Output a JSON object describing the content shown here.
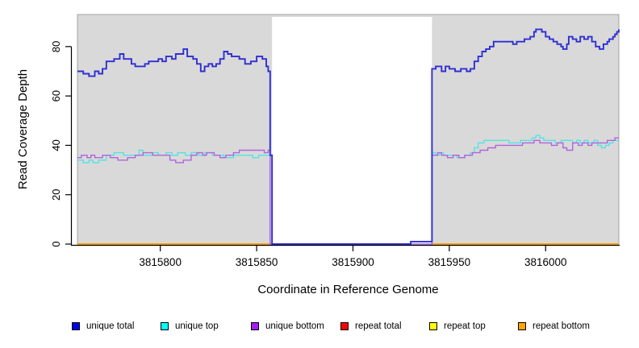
{
  "axes": {
    "x_label": "Coordinate in Reference Genome",
    "y_label": "Read Coverage Depth",
    "x_ticks": [
      {
        "value": 3815800,
        "label": "3815800"
      },
      {
        "value": 3815850,
        "label": "3815850"
      },
      {
        "value": 3815900,
        "label": "3815900"
      },
      {
        "value": 3815950,
        "label": "3815950"
      },
      {
        "value": 3816000,
        "label": "3816000"
      }
    ],
    "y_ticks": [
      {
        "value": 0,
        "label": "0"
      },
      {
        "value": 20,
        "label": "20"
      },
      {
        "value": 40,
        "label": "40"
      },
      {
        "value": 60,
        "label": "60"
      },
      {
        "value": 80,
        "label": "80"
      }
    ],
    "x_domain": [
      3815757,
      3816038
    ],
    "y_domain": [
      0,
      93
    ],
    "axis_color": "#000000"
  },
  "panel": {
    "bg_color": "#d9d9d9",
    "edge_color": "#a3a3a3",
    "gap_region": {
      "x_start": 3815858,
      "x_end": 3815941,
      "color": "#ffffff"
    }
  },
  "legend": {
    "items": [
      {
        "label": "unique total",
        "color": "#0000f0"
      },
      {
        "label": "unique top",
        "color": "#00ffff"
      },
      {
        "label": "unique bottom",
        "color": "#a020f0"
      },
      {
        "label": "repeat total",
        "color": "#ff0000"
      },
      {
        "label": "repeat top",
        "color": "#ffff00"
      },
      {
        "label": "repeat bottom",
        "color": "#ffa500"
      }
    ]
  },
  "chart_data": {
    "type": "line",
    "step": true,
    "title": "",
    "xlabel": "Coordinate in Reference Genome",
    "ylabel": "Read Coverage Depth",
    "xlim": [
      3815757,
      3816038
    ],
    "ylim": [
      0,
      93
    ],
    "grid": false,
    "legend_position": "bottom",
    "masked_region": {
      "x_start": 3815858,
      "x_end": 3815941
    },
    "series": [
      {
        "name": "repeat total",
        "color": "#ff0000",
        "width": 1.8,
        "segments": [
          [
            [
              3815757,
              0
            ],
            [
              3815858,
              0
            ]
          ],
          [
            [
              3815941,
              0
            ],
            [
              3816038,
              0
            ]
          ]
        ]
      },
      {
        "name": "repeat top",
        "color": "#ffff00",
        "width": 1.8,
        "segments": [
          [
            [
              3815757,
              0
            ],
            [
              3815858,
              0
            ]
          ],
          [
            [
              3815941,
              0
            ],
            [
              3816038,
              0
            ]
          ]
        ]
      },
      {
        "name": "repeat bottom",
        "color": "#ff9d09",
        "width": 1.8,
        "segments": [
          [
            [
              3815757,
              0
            ],
            [
              3815858,
              0
            ]
          ],
          [
            [
              3815941,
              0
            ],
            [
              3816038,
              0
            ]
          ]
        ]
      },
      {
        "name": "unique top",
        "color": "#53e3e3",
        "width": 1.4,
        "segments": [
          [
            [
              3815757,
              34
            ],
            [
              3815760,
              33
            ],
            [
              3815763,
              34
            ],
            [
              3815765,
              33
            ],
            [
              3815768,
              34
            ],
            [
              3815772,
              36
            ],
            [
              3815776,
              37
            ],
            [
              3815781,
              36
            ],
            [
              3815789,
              38
            ],
            [
              3815791,
              36
            ],
            [
              3815796,
              37
            ],
            [
              3815799,
              36
            ],
            [
              3815803,
              37
            ],
            [
              3815806,
              36
            ],
            [
              3815809,
              37
            ],
            [
              3815813,
              36
            ],
            [
              3815816,
              37
            ],
            [
              3815820,
              36
            ],
            [
              3815823,
              37
            ],
            [
              3815827,
              36
            ],
            [
              3815833,
              35
            ],
            [
              3815838,
              36
            ],
            [
              3815848,
              35
            ],
            [
              3815851,
              36
            ],
            [
              3815857,
              0
            ],
            [
              3815941,
              37
            ],
            [
              3815943,
              36
            ],
            [
              3815945,
              37
            ],
            [
              3815947,
              36
            ],
            [
              3815954,
              35
            ],
            [
              3815958,
              36
            ],
            [
              3815961,
              37
            ],
            [
              3815963,
              39
            ],
            [
              3815965,
              41
            ],
            [
              3815968,
              42
            ],
            [
              3815981,
              41
            ],
            [
              3815987,
              42
            ],
            [
              3815993,
              43
            ],
            [
              3815995,
              44
            ],
            [
              3815997,
              43
            ],
            [
              3815999,
              42
            ],
            [
              3816005,
              41
            ],
            [
              3816008,
              42
            ],
            [
              3816014,
              41
            ],
            [
              3816016,
              42
            ],
            [
              3816018,
              41
            ],
            [
              3816020,
              42
            ],
            [
              3816022,
              41
            ],
            [
              3816025,
              42
            ],
            [
              3816027,
              40
            ],
            [
              3816029,
              39
            ],
            [
              3816031,
              40
            ],
            [
              3816033,
              41
            ],
            [
              3816035,
              42
            ],
            [
              3816038,
              42
            ]
          ]
        ]
      },
      {
        "name": "unique bottom",
        "color": "#b164dc",
        "width": 1.4,
        "segments": [
          [
            [
              3815757,
              35
            ],
            [
              3815759,
              36
            ],
            [
              3815762,
              35
            ],
            [
              3815764,
              36
            ],
            [
              3815766,
              35
            ],
            [
              3815770,
              36
            ],
            [
              3815774,
              35
            ],
            [
              3815778,
              34
            ],
            [
              3815783,
              35
            ],
            [
              3815787,
              36
            ],
            [
              3815791,
              37
            ],
            [
              3815796,
              36
            ],
            [
              3815805,
              34
            ],
            [
              3815808,
              33
            ],
            [
              3815812,
              34
            ],
            [
              3815816,
              36
            ],
            [
              3815819,
              37
            ],
            [
              3815822,
              36
            ],
            [
              3815824,
              37
            ],
            [
              3815828,
              36
            ],
            [
              3815831,
              35
            ],
            [
              3815834,
              36
            ],
            [
              3815838,
              37
            ],
            [
              3815841,
              38
            ],
            [
              3815851,
              38
            ],
            [
              3815854,
              37
            ],
            [
              3815856,
              38
            ],
            [
              3815857,
              0
            ],
            [
              3815941,
              36
            ],
            [
              3815944,
              37
            ],
            [
              3815946,
              36
            ],
            [
              3815949,
              35
            ],
            [
              3815952,
              36
            ],
            [
              3815955,
              35
            ],
            [
              3815958,
              36
            ],
            [
              3815962,
              37
            ],
            [
              3815966,
              38
            ],
            [
              3815970,
              39
            ],
            [
              3815974,
              40
            ],
            [
              3815988,
              41
            ],
            [
              3815994,
              42
            ],
            [
              3815997,
              41
            ],
            [
              3816003,
              40
            ],
            [
              3816006,
              41
            ],
            [
              3816009,
              39
            ],
            [
              3816011,
              38
            ],
            [
              3816014,
              41
            ],
            [
              3816017,
              40
            ],
            [
              3816019,
              41
            ],
            [
              3816022,
              40
            ],
            [
              3816024,
              41
            ],
            [
              3816029,
              41
            ],
            [
              3816032,
              42
            ],
            [
              3816034,
              42
            ],
            [
              3816036,
              43
            ],
            [
              3816038,
              43
            ]
          ]
        ]
      },
      {
        "name": "unique total",
        "color": "#2f2fd3",
        "width": 1.9,
        "segments": [
          [
            [
              3815757,
              70
            ],
            [
              3815760,
              69
            ],
            [
              3815763,
              68
            ],
            [
              3815766,
              70
            ],
            [
              3815768,
              69
            ],
            [
              3815770,
              71
            ],
            [
              3815772,
              74
            ],
            [
              3815776,
              75
            ],
            [
              3815779,
              77
            ],
            [
              3815781,
              75
            ],
            [
              3815785,
              73
            ],
            [
              3815787,
              72
            ],
            [
              3815792,
              73
            ],
            [
              3815794,
              74
            ],
            [
              3815799,
              75
            ],
            [
              3815801,
              74
            ],
            [
              3815803,
              76
            ],
            [
              3815806,
              75
            ],
            [
              3815808,
              77
            ],
            [
              3815812,
              79
            ],
            [
              3815814,
              76
            ],
            [
              3815817,
              75
            ],
            [
              3815819,
              73
            ],
            [
              3815821,
              70
            ],
            [
              3815823,
              72
            ],
            [
              3815825,
              73
            ],
            [
              3815827,
              72
            ],
            [
              3815829,
              73
            ],
            [
              3815831,
              75
            ],
            [
              3815833,
              78
            ],
            [
              3815835,
              77
            ],
            [
              3815837,
              76
            ],
            [
              3815841,
              75
            ],
            [
              3815844,
              73
            ],
            [
              3815847,
              74
            ],
            [
              3815850,
              76
            ],
            [
              3815853,
              75
            ],
            [
              3815855,
              72
            ],
            [
              3815856,
              70
            ],
            [
              3815857,
              36
            ],
            [
              3815858,
              0
            ],
            [
              3815930,
              1
            ],
            [
              3815941,
              71
            ],
            [
              3815943,
              72
            ],
            [
              3815946,
              70
            ],
            [
              3815948,
              72
            ],
            [
              3815950,
              71
            ],
            [
              3815953,
              70
            ],
            [
              3815956,
              71
            ],
            [
              3815959,
              70
            ],
            [
              3815961,
              71
            ],
            [
              3815963,
              74
            ],
            [
              3815965,
              76
            ],
            [
              3815967,
              78
            ],
            [
              3815969,
              79
            ],
            [
              3815971,
              80
            ],
            [
              3815973,
              82
            ],
            [
              3815983,
              81
            ],
            [
              3815985,
              82
            ],
            [
              3815989,
              83
            ],
            [
              3815992,
              84
            ],
            [
              3815994,
              86
            ],
            [
              3815995,
              87
            ],
            [
              3815998,
              86
            ],
            [
              3816000,
              84
            ],
            [
              3816002,
              83
            ],
            [
              3816004,
              82
            ],
            [
              3816006,
              81
            ],
            [
              3816008,
              80
            ],
            [
              3816009,
              79
            ],
            [
              3816011,
              81
            ],
            [
              3816012,
              84
            ],
            [
              3816014,
              83
            ],
            [
              3816016,
              82
            ],
            [
              3816018,
              84
            ],
            [
              3816020,
              83
            ],
            [
              3816022,
              84
            ],
            [
              3816024,
              82
            ],
            [
              3816026,
              80
            ],
            [
              3816028,
              79
            ],
            [
              3816030,
              81
            ],
            [
              3816032,
              82
            ],
            [
              3816033,
              83
            ],
            [
              3816035,
              84
            ],
            [
              3816036,
              85
            ],
            [
              3816037,
              86
            ],
            [
              3816038,
              87
            ]
          ]
        ]
      }
    ]
  }
}
